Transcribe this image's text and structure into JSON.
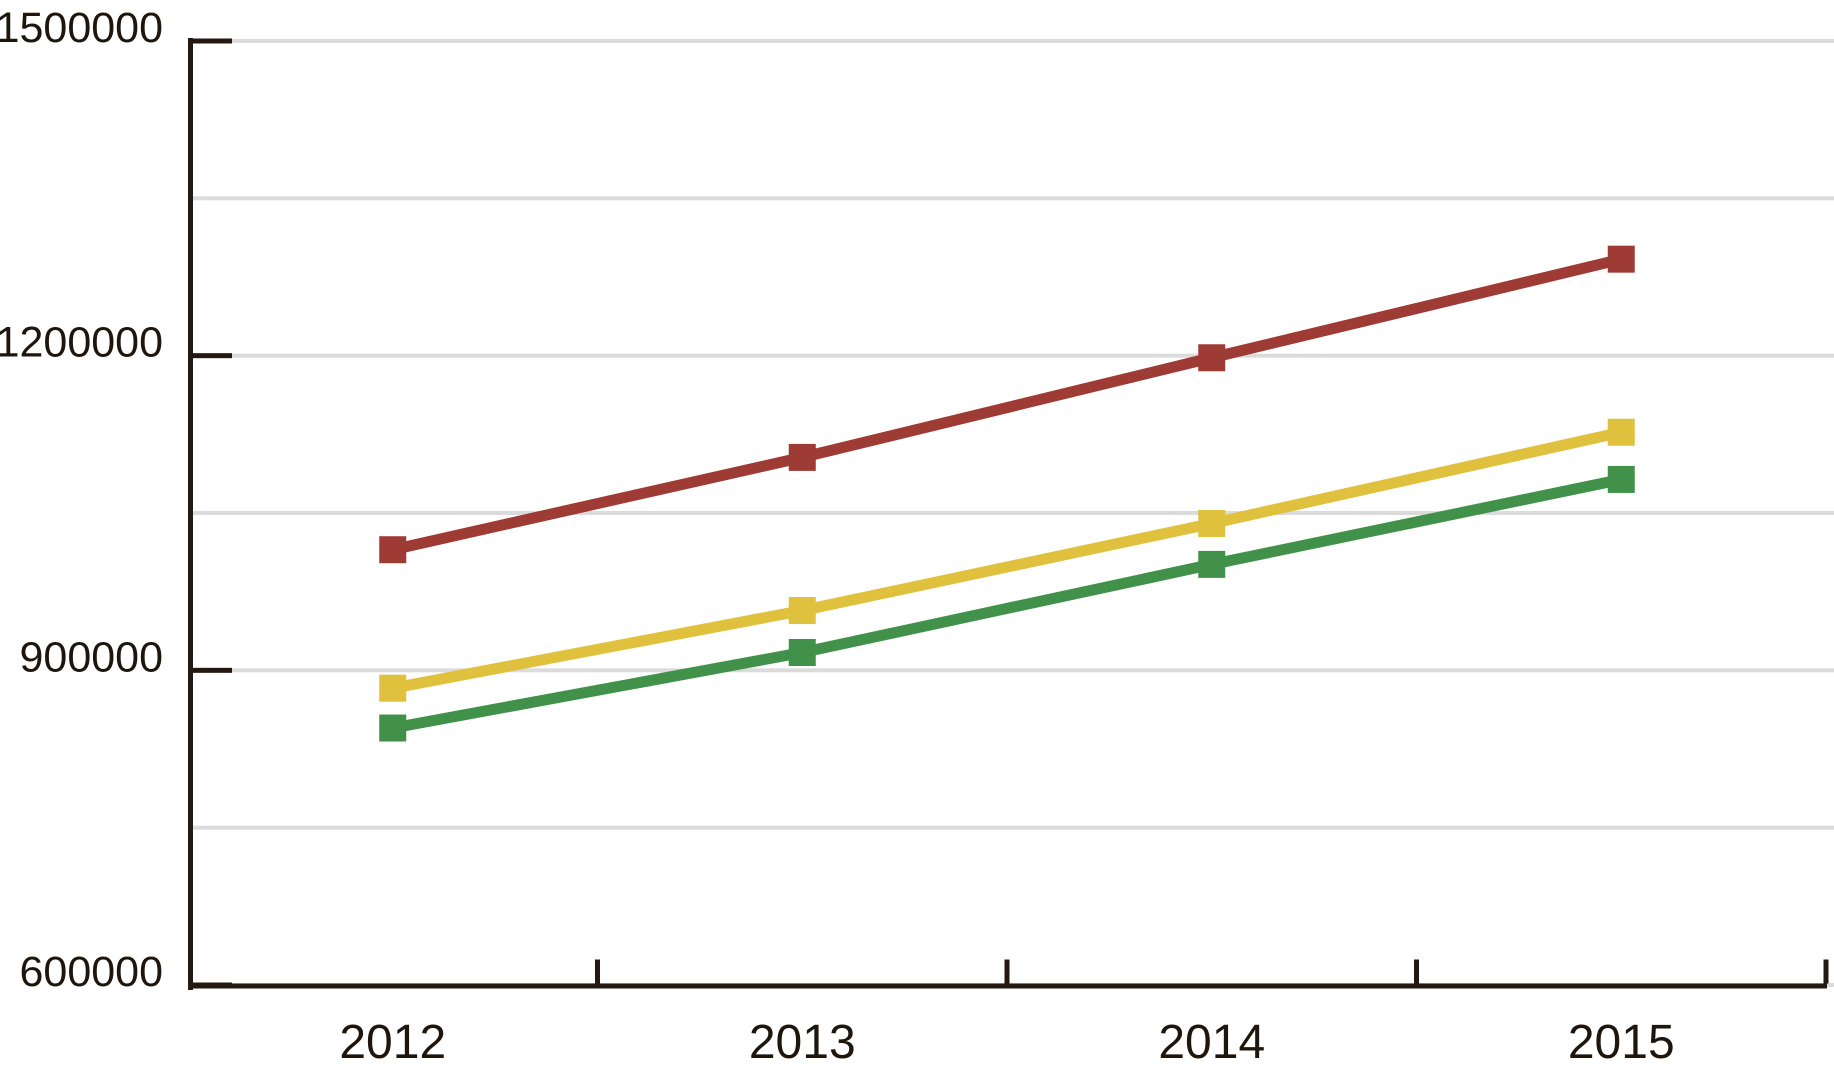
{
  "chart_data": {
    "type": "line",
    "title": "",
    "xlabel": "",
    "ylabel": "",
    "categories": [
      "2012",
      "2013",
      "2014",
      "2015"
    ],
    "series": [
      {
        "id": "series-red",
        "color": "#9E3B34",
        "values": [
          1015000,
          1103000,
          1198000,
          1292000
        ]
      },
      {
        "id": "series-yellow",
        "color": "#DFC13E",
        "values": [
          883000,
          957000,
          1040000,
          1127000
        ]
      },
      {
        "id": "series-green",
        "color": "#42914A",
        "values": [
          845000,
          917000,
          1001000,
          1082000
        ]
      }
    ],
    "ylim": [
      600000,
      1500000
    ],
    "y_tick_values": [
      600000,
      900000,
      1200000,
      1500000
    ],
    "y_tick_labels": [
      "600000",
      "900000",
      "1200000",
      "1500000"
    ],
    "y_gridline_values": [
      600000,
      750000,
      900000,
      1050000,
      1200000,
      1350000,
      1500000
    ],
    "grid": true,
    "legend_position": "none",
    "marker_shape": "square"
  },
  "colors": {
    "background": "#FFFFFF",
    "axis": "#241910",
    "gridline": "#DBDBDB",
    "text": "#1E150D"
  }
}
